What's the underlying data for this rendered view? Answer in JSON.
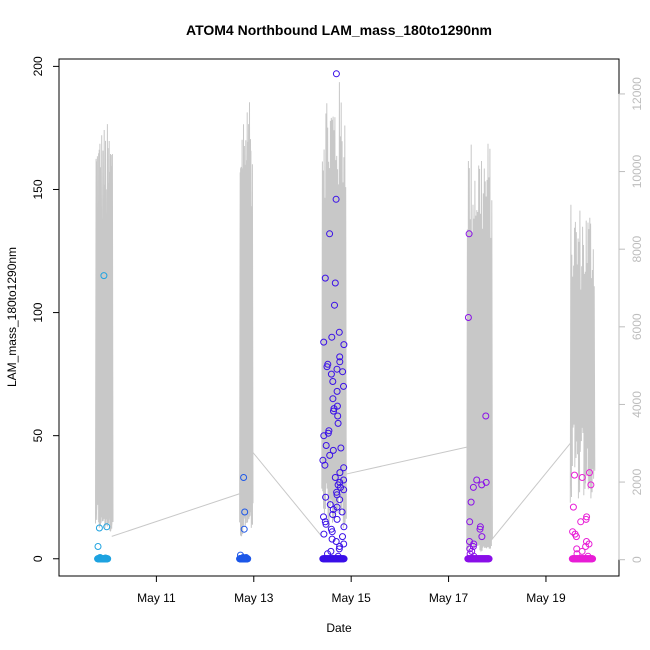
{
  "chart_data": {
    "type": "scatter",
    "title": "ATOM4 Northbound LAM_mass_180to1290nm",
    "xlabel": "Date",
    "ylabel": "LAM_mass_180to1290nm",
    "xlim": [
      "2017-05-09 00:00",
      "2017-05-20 12:00"
    ],
    "ylim": [
      -7,
      203
    ],
    "y2lim": [
      -420,
      12900
    ],
    "x_ticks": [
      {
        "label": "May 11",
        "date": "2017-05-11"
      },
      {
        "label": "May 13",
        "date": "2017-05-13"
      },
      {
        "label": "May 15",
        "date": "2017-05-15"
      },
      {
        "label": "May 17",
        "date": "2017-05-17"
      },
      {
        "label": "May 19",
        "date": "2017-05-19"
      }
    ],
    "y_ticks": [
      0,
      50,
      100,
      150,
      200
    ],
    "y2_ticks": [
      0,
      2000,
      4000,
      6000,
      8000,
      10000,
      12000
    ],
    "grid": false,
    "legend": "none",
    "point_colors": [
      "#1fa3e0",
      "#1e58e8",
      "#3a10e8",
      "#8a10e8",
      "#e81ed6"
    ],
    "line_color": "#c8c8c8",
    "points": {
      "cluster1": {
        "start": "2017-05-09 19:00",
        "end": "2017-05-10 00:00",
        "color": "#1fa3e0",
        "values": [
          115,
          13,
          12.5,
          5,
          0.5,
          0.3
        ]
      },
      "cluster2": {
        "start": "2017-05-12 17:00",
        "end": "2017-05-12 21:00",
        "color": "#1e58e8",
        "values": [
          33,
          19,
          12,
          1.5,
          0.5,
          0.5
        ]
      },
      "cluster3": {
        "start": "2017-05-14 10:00",
        "end": "2017-05-14 20:30",
        "color": "#3a10e8",
        "values": [
          197,
          146,
          132,
          114,
          112,
          103,
          92,
          90,
          88,
          87,
          82,
          80,
          79,
          78,
          77,
          76,
          75,
          72,
          70,
          68,
          65,
          62,
          61,
          60,
          58,
          55,
          52,
          51,
          50,
          46,
          45,
          44,
          42,
          40,
          38,
          37,
          35,
          33,
          32,
          31,
          30,
          29,
          28,
          27,
          26,
          25,
          24,
          22,
          21,
          20,
          19,
          18,
          17,
          16,
          15,
          14,
          13,
          12,
          11,
          10,
          9,
          8,
          7,
          6,
          5,
          4,
          3,
          2,
          1
        ]
      },
      "cluster4": {
        "start": "2017-05-17 09:30",
        "end": "2017-05-17 20:00",
        "color": "#8a10e8",
        "values": [
          132,
          98,
          58,
          32,
          31,
          30,
          29,
          23,
          15,
          13,
          12,
          9,
          7,
          6,
          5,
          4,
          3,
          2,
          1
        ]
      },
      "cluster5": {
        "start": "2017-05-19 13:00",
        "end": "2017-05-19 23:00",
        "color": "#e81ed6",
        "values": [
          35,
          34,
          33,
          30,
          21,
          17,
          16,
          15,
          11,
          10,
          9,
          7,
          6,
          5,
          4,
          3,
          2,
          1
        ]
      }
    },
    "line_segments": {
      "bursts": [
        {
          "start": "2017-05-09 18:00",
          "end": "2017-05-10 02:00",
          "max": 11300,
          "min": 1600
        },
        {
          "start": "2017-05-12 17:00",
          "end": "2017-05-12 23:00",
          "max": 11800,
          "min": 1500
        },
        {
          "start": "2017-05-14 09:30",
          "end": "2017-05-14 21:00",
          "max": 12400,
          "min": 2000
        },
        {
          "start": "2017-05-17 09:00",
          "end": "2017-05-17 21:00",
          "max": 10900,
          "min": 500
        },
        {
          "start": "2017-05-19 12:00",
          "end": "2017-05-19 23:30",
          "max": 9200,
          "min": 3500
        }
      ],
      "connectors": [
        {
          "from": [
            "2017-05-10 02:00",
            600
          ],
          "to": [
            "2017-05-12 17:00",
            1700
          ]
        },
        {
          "from": [
            "2017-05-12 23:00",
            2800
          ],
          "to": [
            "2017-05-14 09:30",
            600
          ]
        },
        {
          "from": [
            "2017-05-14 21:00",
            2200
          ],
          "to": [
            "2017-05-17 09:00",
            2900
          ]
        },
        {
          "from": [
            "2017-05-17 21:00",
            500
          ],
          "to": [
            "2017-05-19 12:00",
            3000
          ]
        }
      ]
    }
  }
}
